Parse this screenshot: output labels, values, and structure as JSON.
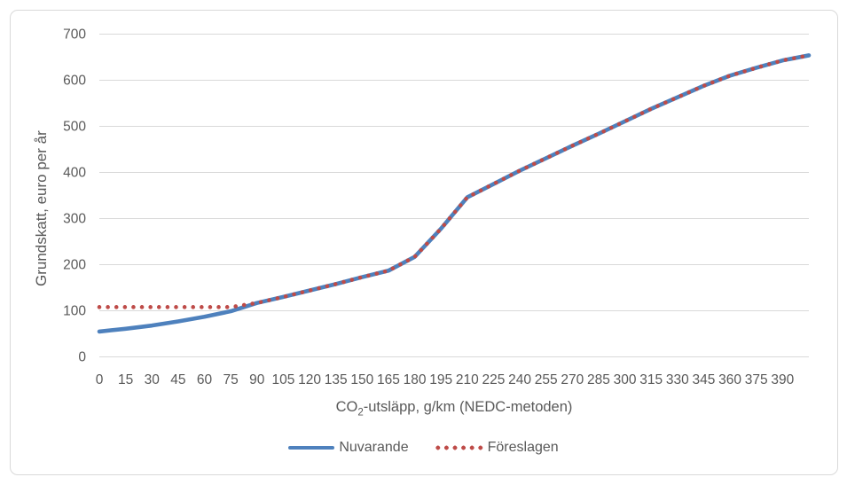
{
  "chart_data": {
    "type": "line",
    "title": "",
    "xlabel": "CO2-utsläpp, g/km (NEDC-metoden)",
    "xlabel_parts": {
      "prefix": "CO",
      "sub": "2",
      "suffix": "-utsläpp, g/km (NEDC-metoden)"
    },
    "ylabel": "Grundskatt, euro per år",
    "x": [
      0,
      15,
      30,
      45,
      60,
      75,
      90,
      105,
      120,
      135,
      150,
      165,
      180,
      195,
      210,
      225,
      240,
      255,
      270,
      285,
      300,
      315,
      330,
      345,
      360,
      375,
      390,
      405
    ],
    "series": [
      {
        "name": "Nuvarande",
        "style": "solid",
        "color": "#4E81BD",
        "values": [
          54,
          60,
          67,
          76,
          86,
          98,
          116,
          129,
          143,
          157,
          172,
          186,
          216,
          277,
          345,
          374,
          403,
          430,
          457,
          483,
          510,
          537,
          562,
          587,
          609,
          626,
          642,
          653
        ]
      },
      {
        "name": "Föreslagen",
        "style": "dotted",
        "color": "#BE4B48",
        "values": [
          107,
          107,
          107,
          107,
          107,
          107,
          116,
          129,
          143,
          157,
          172,
          186,
          216,
          277,
          345,
          374,
          403,
          430,
          457,
          483,
          510,
          537,
          562,
          587,
          609,
          626,
          642,
          653
        ]
      }
    ],
    "xticks": [
      0,
      15,
      30,
      45,
      60,
      75,
      90,
      105,
      120,
      135,
      150,
      165,
      180,
      195,
      210,
      225,
      240,
      255,
      270,
      285,
      300,
      315,
      330,
      345,
      360,
      375,
      390
    ],
    "yticks": [
      0,
      100,
      200,
      300,
      400,
      500,
      600,
      700
    ],
    "xlim": [
      0,
      405
    ],
    "ylim": [
      0,
      700
    ],
    "grid": true,
    "legend_position": "bottom"
  },
  "colors": {
    "series1": "#4E81BD",
    "series2": "#BE4B48",
    "gridline": "#D9D9D9",
    "border": "#D9D9D9",
    "text": "#595959"
  }
}
